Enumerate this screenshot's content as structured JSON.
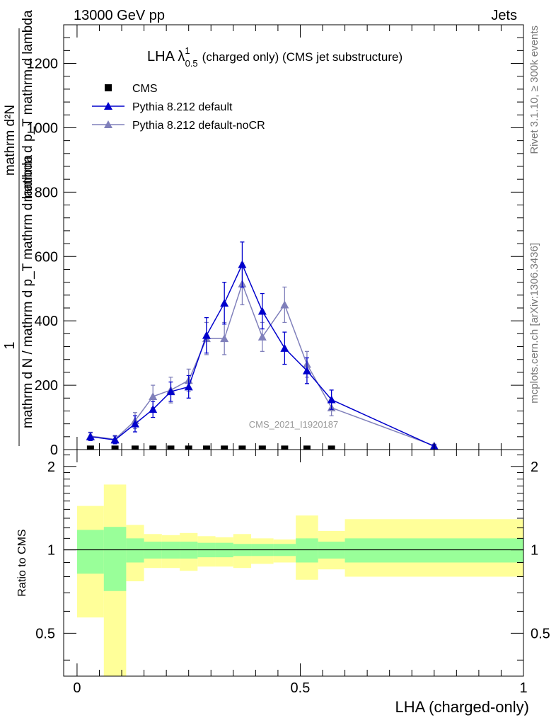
{
  "header": {
    "energy_label": "13000 GeV pp",
    "process_label": "Jets"
  },
  "side_labels": {
    "rivet": "Rivet 3.1.10, ≥ 300k events",
    "mcplots": "mcplots.cern.ch [arXiv:1306.3436]"
  },
  "chart_data": [
    {
      "type": "line",
      "title_main": "LHA λ",
      "title_sup": "1",
      "title_sub": "0.5",
      "title_rest": "(charged only) (CMS jet substructure)",
      "ylabel_num_1": "1",
      "ylabel_den_1": "mathrm d N / mathrm d p_T mathrm d lambda",
      "ylabel_num_2": "mathrm d²N",
      "ylabel_den_2": "mathrm d p_T mathrm d lambda",
      "ylim": [
        0,
        1320
      ],
      "xlim": [
        -0.03,
        1.0
      ],
      "yticks": [
        0,
        200,
        400,
        600,
        800,
        1000,
        1200
      ],
      "ytick_labels": [
        "0",
        "200",
        "400",
        "600",
        "800",
        "1000",
        "1200"
      ],
      "watermark": "CMS_2021_I1920187",
      "legend": [
        "CMS",
        "Pythia 8.212 default",
        "Pythia 8.212 default-noCR"
      ],
      "x": [
        0.03,
        0.085,
        0.13,
        0.17,
        0.21,
        0.25,
        0.29,
        0.33,
        0.37,
        0.415,
        0.465,
        0.515,
        0.57,
        0.8
      ],
      "series": [
        {
          "name": "CMS",
          "color": "#000000",
          "marker": "square",
          "x": [
            0.03,
            0.085,
            0.13,
            0.17,
            0.21,
            0.25,
            0.29,
            0.33,
            0.37,
            0.415,
            0.465,
            0.515,
            0.57
          ],
          "values": [
            1.5,
            1.5,
            1.5,
            1.5,
            1.5,
            1.5,
            1.5,
            1.5,
            1.5,
            1.5,
            1.5,
            1.5,
            1.5
          ]
        },
        {
          "name": "Pythia 8.212 default",
          "color": "#0000cc",
          "marker": "triangle",
          "values": [
            40,
            30,
            80,
            125,
            180,
            195,
            355,
            455,
            575,
            430,
            315,
            245,
            155,
            10
          ],
          "errors": [
            12,
            12,
            25,
            25,
            30,
            35,
            55,
            65,
            70,
            55,
            50,
            40,
            30,
            5
          ]
        },
        {
          "name": "Pythia 8.212 default-noCR",
          "color": "#8080bb",
          "marker": "triangle",
          "values": [
            42,
            32,
            90,
            165,
            185,
            215,
            345,
            345,
            515,
            350,
            450,
            265,
            130,
            12
          ],
          "errors": [
            12,
            12,
            25,
            35,
            40,
            35,
            50,
            50,
            65,
            45,
            55,
            40,
            25,
            5
          ]
        }
      ]
    },
    {
      "type": "area",
      "ylabel": "Ratio to CMS",
      "xlabel": "LHA (charged-only)",
      "ylim": [
        0.35,
        2.3
      ],
      "yticks": [
        0.5,
        1,
        2
      ],
      "ytick_labels": [
        "0.5",
        "1",
        "2"
      ],
      "xticks": [
        0,
        0.5,
        1
      ],
      "xtick_labels": [
        "0",
        "0.5",
        "1"
      ],
      "bin_edges": [
        0,
        0.06,
        0.11,
        0.15,
        0.19,
        0.23,
        0.27,
        0.31,
        0.35,
        0.39,
        0.44,
        0.49,
        0.54,
        0.6,
        1.0
      ],
      "green_band": [
        [
          0.82,
          1.18
        ],
        [
          0.71,
          1.21
        ],
        [
          0.9,
          1.1
        ],
        [
          0.93,
          1.07
        ],
        [
          0.93,
          1.07
        ],
        [
          0.93,
          1.07
        ],
        [
          0.94,
          1.06
        ],
        [
          0.94,
          1.06
        ],
        [
          0.95,
          1.05
        ],
        [
          0.95,
          1.05
        ],
        [
          0.95,
          1.05
        ],
        [
          0.9,
          1.1
        ],
        [
          0.93,
          1.07
        ],
        [
          0.9,
          1.1
        ]
      ],
      "yellow_band": [
        [
          0.57,
          1.44
        ],
        [
          0.35,
          1.72
        ],
        [
          0.77,
          1.23
        ],
        [
          0.86,
          1.14
        ],
        [
          0.86,
          1.13
        ],
        [
          0.84,
          1.15
        ],
        [
          0.87,
          1.12
        ],
        [
          0.87,
          1.11
        ],
        [
          0.86,
          1.14
        ],
        [
          0.89,
          1.1
        ],
        [
          0.9,
          1.09
        ],
        [
          0.78,
          1.33
        ],
        [
          0.85,
          1.17
        ],
        [
          0.8,
          1.29
        ]
      ],
      "band_colors": {
        "green": "#99ff99",
        "yellow": "#ffff99"
      }
    }
  ]
}
